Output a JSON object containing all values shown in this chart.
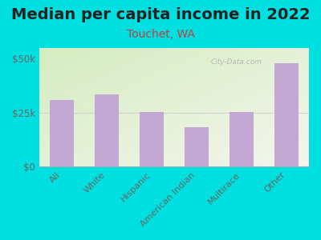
{
  "title": "Median per capita income in 2022",
  "subtitle": "Touchet, WA",
  "categories": [
    "All",
    "White",
    "Hispanic",
    "American Indian",
    "Multirace",
    "Other"
  ],
  "values": [
    31000,
    33500,
    25500,
    18500,
    25500,
    48000
  ],
  "bar_color": "#c4a8d4",
  "background_outer": "#00e0e0",
  "grad_top_left": "#d4edc0",
  "grad_bottom_right": "#f5f5ee",
  "title_color": "#222222",
  "subtitle_color": "#c04040",
  "ylabel_ticks": [
    "$0",
    "$25k",
    "$50k"
  ],
  "ytick_values": [
    0,
    25000,
    50000
  ],
  "ylim": [
    0,
    55000
  ],
  "watermark": "City-Data.com",
  "title_fontsize": 14,
  "subtitle_fontsize": 10
}
